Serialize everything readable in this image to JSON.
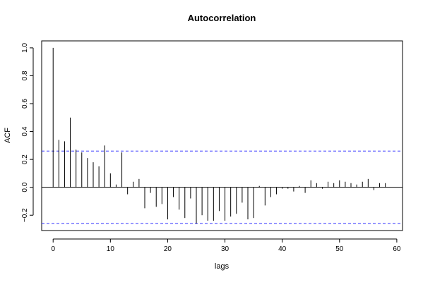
{
  "chart_data": {
    "type": "bar",
    "title": "Autocorrelation",
    "xlabel": "lags",
    "ylabel": "ACF",
    "xlim": [
      -2,
      61
    ],
    "ylim": [
      -0.31,
      1.05
    ],
    "x_ticks": [
      0,
      10,
      20,
      30,
      40,
      50,
      60
    ],
    "y_ticks": [
      -0.2,
      0.0,
      0.2,
      0.4,
      0.6,
      0.8,
      1.0
    ],
    "x_tick_labels": [
      "0",
      "10",
      "20",
      "30",
      "40",
      "50",
      "60"
    ],
    "y_tick_labels": [
      "−0.2",
      "0.0",
      "0.2",
      "0.4",
      "0.6",
      "0.8",
      "1.0"
    ],
    "confidence_band": [
      0.26,
      -0.26
    ],
    "lags": [
      0,
      1,
      2,
      3,
      4,
      5,
      6,
      7,
      8,
      9,
      10,
      11,
      12,
      13,
      14,
      15,
      16,
      17,
      18,
      19,
      20,
      21,
      22,
      23,
      24,
      25,
      26,
      27,
      28,
      29,
      30,
      31,
      32,
      33,
      34,
      35,
      36,
      37,
      38,
      39,
      40,
      41,
      42,
      43,
      44,
      45,
      46,
      47,
      48,
      49,
      50,
      51,
      52,
      53,
      54,
      55,
      56,
      57,
      58,
      59
    ],
    "values": [
      1.0,
      0.34,
      0.33,
      0.5,
      0.27,
      0.25,
      0.21,
      0.18,
      0.15,
      0.3,
      0.1,
      0.02,
      0.25,
      -0.05,
      0.04,
      0.06,
      -0.15,
      -0.04,
      -0.14,
      -0.12,
      -0.23,
      -0.07,
      -0.16,
      -0.22,
      -0.08,
      -0.26,
      -0.2,
      -0.24,
      -0.24,
      -0.17,
      -0.24,
      -0.21,
      -0.19,
      -0.11,
      -0.23,
      -0.22,
      0.01,
      -0.13,
      -0.07,
      -0.05,
      -0.01,
      -0.01,
      -0.03,
      0.01,
      -0.04,
      0.05,
      0.03,
      -0.01,
      0.04,
      0.03,
      0.05,
      0.04,
      0.03,
      0.02,
      0.04,
      0.06,
      -0.02,
      0.03,
      0.03,
      0.0
    ],
    "grid": false,
    "colors": {
      "bars": "#000000",
      "confidence": "#3333ff"
    }
  }
}
